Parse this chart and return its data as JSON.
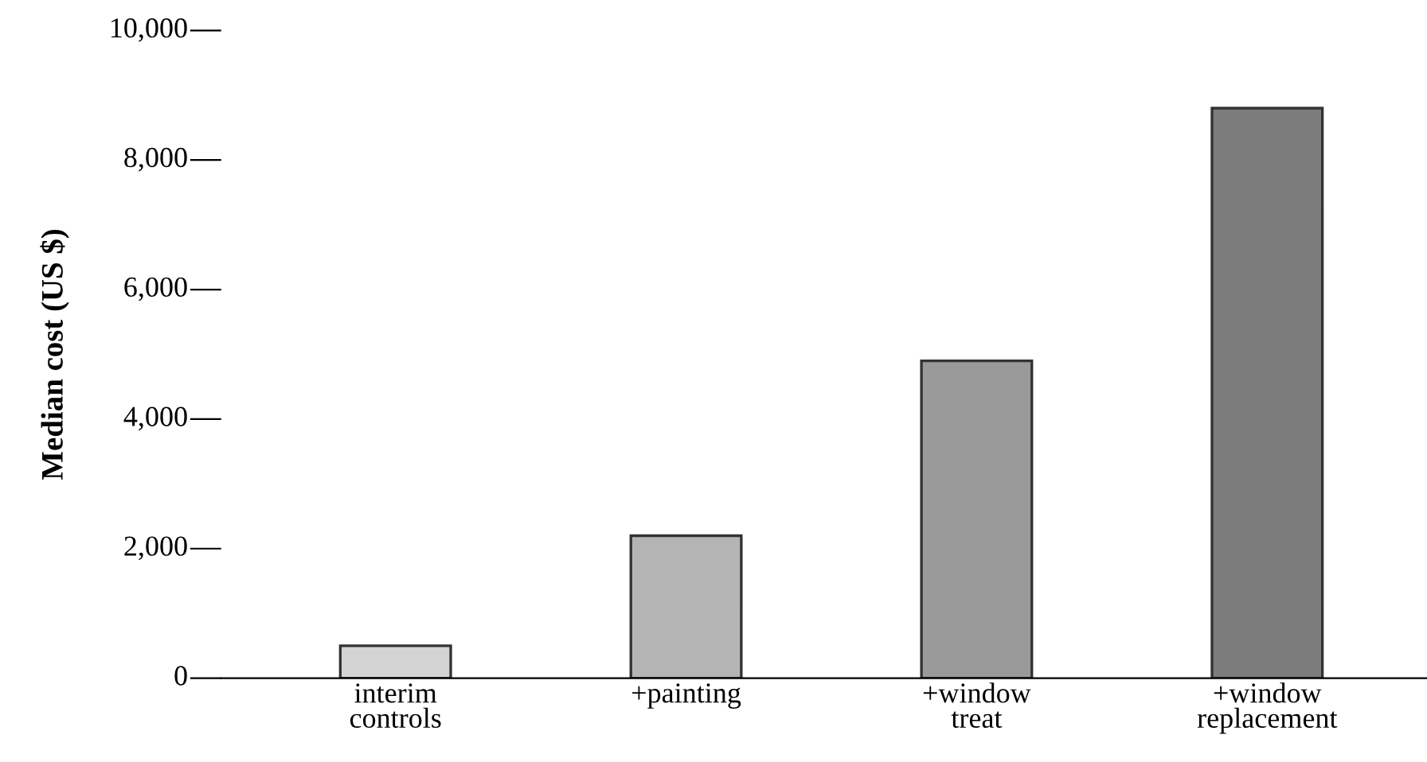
{
  "chart_data": {
    "type": "bar",
    "ylabel": "Median cost (US $)",
    "categories": [
      "interim\ncontrols",
      "+painting",
      "+window\ntreat",
      "+window\nreplacement"
    ],
    "values": [
      500,
      2200,
      4900,
      8800
    ],
    "colors": [
      "#d4d4d4",
      "#b4b4b4",
      "#9a9a9a",
      "#7c7c7c"
    ],
    "ylim": [
      0,
      10000
    ],
    "yticks": [
      {
        "value": 0,
        "label": "0"
      },
      {
        "value": 2000,
        "label": "2,000"
      },
      {
        "value": 4000,
        "label": "4,000"
      },
      {
        "value": 6000,
        "label": "6,000"
      },
      {
        "value": 8000,
        "label": "8,000"
      },
      {
        "value": 10000,
        "label": "10,000"
      }
    ],
    "grid": false
  }
}
